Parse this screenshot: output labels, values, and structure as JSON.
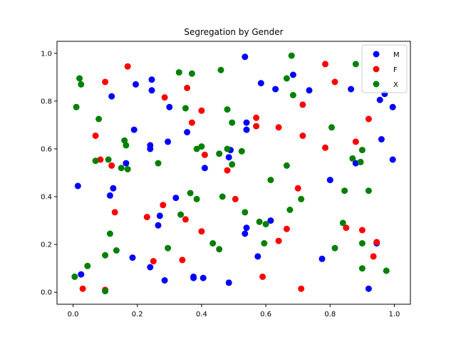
{
  "chart_data": {
    "type": "scatter",
    "title": "Segregation by Gender",
    "xlabel": "",
    "ylabel": "",
    "xlim": [
      -0.05,
      1.05
    ],
    "ylim": [
      -0.05,
      1.05
    ],
    "xticks": [
      "0.0",
      "0.2",
      "0.4",
      "0.6",
      "0.8",
      "1.0"
    ],
    "yticks": [
      "0.0",
      "0.2",
      "0.4",
      "0.6",
      "0.8",
      "1.0"
    ],
    "xtick_values": [
      0.0,
      0.2,
      0.4,
      0.6,
      0.8,
      1.0
    ],
    "ytick_values": [
      0.0,
      0.2,
      0.4,
      0.6,
      0.8,
      1.0
    ],
    "grid": false,
    "legend": "top-right",
    "series": [
      {
        "name": "M",
        "color": "#0000ff",
        "points": [
          [
            0.535,
            0.985
          ],
          [
            0.685,
            0.91
          ],
          [
            0.245,
            0.89
          ],
          [
            0.585,
            0.875
          ],
          [
            0.63,
            0.85
          ],
          [
            0.735,
            0.845
          ],
          [
            0.865,
            0.85
          ],
          [
            0.12,
            0.82
          ],
          [
            0.195,
            0.87
          ],
          [
            0.245,
            0.845
          ],
          [
            0.955,
            0.805
          ],
          [
            0.97,
            0.83
          ],
          [
            0.3,
            0.775
          ],
          [
            0.995,
            0.775
          ],
          [
            0.54,
            0.71
          ],
          [
            0.54,
            0.68
          ],
          [
            0.355,
            0.67
          ],
          [
            0.19,
            0.68
          ],
          [
            0.24,
            0.615
          ],
          [
            0.24,
            0.6
          ],
          [
            0.295,
            0.63
          ],
          [
            0.49,
            0.595
          ],
          [
            0.485,
            0.565
          ],
          [
            0.165,
            0.54
          ],
          [
            0.41,
            0.52
          ],
          [
            0.88,
            0.54
          ],
          [
            0.96,
            0.64
          ],
          [
            0.995,
            0.555
          ],
          [
            0.015,
            0.445
          ],
          [
            0.115,
            0.405
          ],
          [
            0.125,
            0.435
          ],
          [
            0.32,
            0.395
          ],
          [
            0.8,
            0.47
          ],
          [
            0.27,
            0.32
          ],
          [
            0.265,
            0.28
          ],
          [
            0.54,
            0.27
          ],
          [
            0.535,
            0.245
          ],
          [
            0.575,
            0.15
          ],
          [
            0.615,
            0.3
          ],
          [
            0.185,
            0.145
          ],
          [
            0.24,
            0.105
          ],
          [
            0.375,
            0.065
          ],
          [
            0.375,
            0.06
          ],
          [
            0.405,
            0.06
          ],
          [
            0.285,
            0.05
          ],
          [
            0.485,
            0.04
          ],
          [
            0.775,
            0.14
          ],
          [
            0.92,
            0.015
          ],
          [
            0.025,
            0.075
          ],
          [
            0.945,
            0.205
          ]
        ]
      },
      {
        "name": "F",
        "color": "#ff0000",
        "points": [
          [
            0.17,
            0.945
          ],
          [
            0.785,
            0.955
          ],
          [
            0.1,
            0.88
          ],
          [
            0.815,
            0.88
          ],
          [
            0.285,
            0.815
          ],
          [
            0.355,
            0.855
          ],
          [
            0.715,
            0.785
          ],
          [
            0.4,
            0.76
          ],
          [
            0.57,
            0.73
          ],
          [
            0.37,
            0.71
          ],
          [
            0.57,
            0.695
          ],
          [
            0.64,
            0.69
          ],
          [
            0.07,
            0.655
          ],
          [
            0.715,
            0.655
          ],
          [
            0.785,
            0.605
          ],
          [
            0.88,
            0.63
          ],
          [
            0.92,
            0.725
          ],
          [
            0.41,
            0.575
          ],
          [
            0.085,
            0.555
          ],
          [
            0.12,
            0.53
          ],
          [
            0.48,
            0.51
          ],
          [
            0.7,
            0.435
          ],
          [
            0.505,
            0.39
          ],
          [
            0.28,
            0.365
          ],
          [
            0.13,
            0.335
          ],
          [
            0.23,
            0.315
          ],
          [
            0.35,
            0.305
          ],
          [
            0.4,
            0.255
          ],
          [
            0.665,
            0.265
          ],
          [
            0.85,
            0.27
          ],
          [
            0.9,
            0.26
          ],
          [
            0.64,
            0.215
          ],
          [
            0.945,
            0.21
          ],
          [
            0.935,
            0.15
          ],
          [
            0.25,
            0.13
          ],
          [
            0.34,
            0.135
          ],
          [
            0.59,
            0.065
          ],
          [
            0.03,
            0.015
          ],
          [
            0.1,
            0.01
          ],
          [
            0.71,
            0.015
          ]
        ]
      },
      {
        "name": "X",
        "color": "#008000",
        "points": [
          [
            0.02,
            0.895
          ],
          [
            0.025,
            0.87
          ],
          [
            0.01,
            0.775
          ],
          [
            0.33,
            0.92
          ],
          [
            0.37,
            0.915
          ],
          [
            0.46,
            0.93
          ],
          [
            0.68,
            0.99
          ],
          [
            0.665,
            0.895
          ],
          [
            0.685,
            0.825
          ],
          [
            0.88,
            0.955
          ],
          [
            0.35,
            0.77
          ],
          [
            0.48,
            0.765
          ],
          [
            0.495,
            0.71
          ],
          [
            0.08,
            0.725
          ],
          [
            0.16,
            0.635
          ],
          [
            0.165,
            0.615
          ],
          [
            0.385,
            0.6
          ],
          [
            0.4,
            0.61
          ],
          [
            0.455,
            0.58
          ],
          [
            0.48,
            0.6
          ],
          [
            0.525,
            0.59
          ],
          [
            0.805,
            0.69
          ],
          [
            0.07,
            0.55
          ],
          [
            0.11,
            0.555
          ],
          [
            0.15,
            0.52
          ],
          [
            0.17,
            0.515
          ],
          [
            0.265,
            0.54
          ],
          [
            0.495,
            0.535
          ],
          [
            0.665,
            0.53
          ],
          [
            0.87,
            0.56
          ],
          [
            0.895,
            0.545
          ],
          [
            0.9,
            0.595
          ],
          [
            0.615,
            0.47
          ],
          [
            0.365,
            0.415
          ],
          [
            0.385,
            0.39
          ],
          [
            0.465,
            0.4
          ],
          [
            0.71,
            0.39
          ],
          [
            0.845,
            0.425
          ],
          [
            0.92,
            0.425
          ],
          [
            0.675,
            0.345
          ],
          [
            0.335,
            0.325
          ],
          [
            0.535,
            0.335
          ],
          [
            0.58,
            0.295
          ],
          [
            0.6,
            0.285
          ],
          [
            0.115,
            0.245
          ],
          [
            0.135,
            0.175
          ],
          [
            0.1,
            0.155
          ],
          [
            0.295,
            0.185
          ],
          [
            0.435,
            0.205
          ],
          [
            0.455,
            0.18
          ],
          [
            0.595,
            0.205
          ],
          [
            0.815,
            0.185
          ],
          [
            0.84,
            0.29
          ],
          [
            0.9,
            0.205
          ],
          [
            0.045,
            0.11
          ],
          [
            0.005,
            0.065
          ],
          [
            0.1,
            0.005
          ],
          [
            0.9,
            0.1
          ],
          [
            0.975,
            0.09
          ]
        ]
      }
    ]
  }
}
